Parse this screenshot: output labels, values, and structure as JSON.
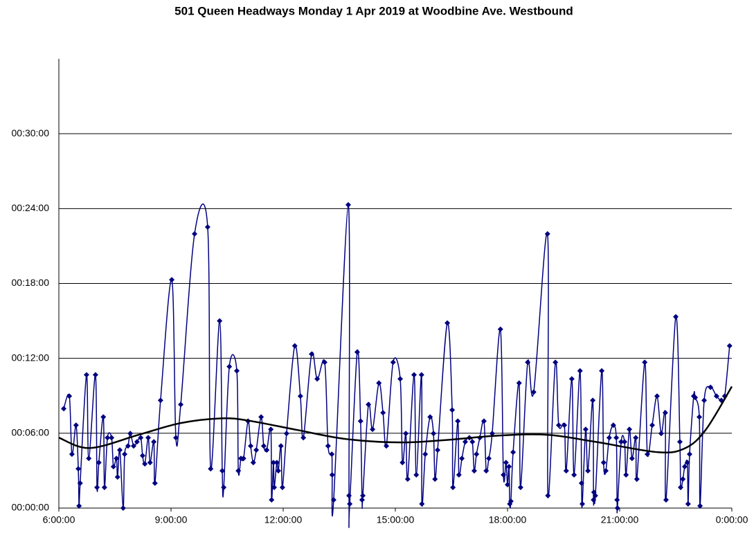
{
  "chart_data": {
    "type": "line",
    "title": "501 Queen Headways Monday 1 Apr 2019 at Woodbine Ave. Westbound",
    "xlim": [
      6,
      24
    ],
    "xticks": [
      {
        "value": 6,
        "label": "6:00:00"
      },
      {
        "value": 9,
        "label": "9:00:00"
      },
      {
        "value": 12,
        "label": "12:00:00"
      },
      {
        "value": 15,
        "label": "15:00:00"
      },
      {
        "value": 18,
        "label": "18:00:00"
      },
      {
        "value": 21,
        "label": "21:00:00"
      },
      {
        "value": 24,
        "label": "0:00:00"
      }
    ],
    "ylim": [
      0,
      36
    ],
    "yticks": [
      {
        "value": 0,
        "label": "00:00:00"
      },
      {
        "value": 6,
        "label": "00:06:00"
      },
      {
        "value": 12,
        "label": "00:12:00"
      },
      {
        "value": 18,
        "label": "00:18:00"
      },
      {
        "value": 24,
        "label": "00:24:00"
      },
      {
        "value": 30,
        "label": "00:30:00"
      }
    ],
    "grid": true,
    "series": [
      {
        "color": "#000080",
        "markers": true,
        "smooth": true,
        "x": [
          6.13,
          6.28,
          6.35,
          6.46,
          6.52,
          6.54,
          6.57,
          6.74,
          6.8,
          6.98,
          7.02,
          7.07,
          7.19,
          7.22,
          7.3,
          7.41,
          7.46,
          7.54,
          7.57,
          7.63,
          7.72,
          7.76,
          7.85,
          7.91,
          8.0,
          8.09,
          8.19,
          8.24,
          8.3,
          8.39,
          8.44,
          8.54,
          8.57,
          8.72,
          9.02,
          9.13,
          9.26,
          9.63,
          9.98,
          10.06,
          10.3,
          10.37,
          10.41,
          10.56,
          10.76,
          10.8,
          10.87,
          10.94,
          11.06,
          11.13,
          11.2,
          11.28,
          11.41,
          11.48,
          11.56,
          11.67,
          11.69,
          11.74,
          11.76,
          11.83,
          11.87,
          11.94,
          11.98,
          12.09,
          12.31,
          12.46,
          12.54,
          12.76,
          12.91,
          13.11,
          13.2,
          13.3,
          13.31,
          13.35,
          13.74,
          13.76,
          13.78,
          13.98,
          14.07,
          14.11,
          14.13,
          14.28,
          14.39,
          14.56,
          14.67,
          14.76,
          14.94,
          15.13,
          15.19,
          15.28,
          15.33,
          15.5,
          15.56,
          15.7,
          15.71,
          15.8,
          15.93,
          16.02,
          16.06,
          16.13,
          16.39,
          16.52,
          16.54,
          16.67,
          16.7,
          16.78,
          16.87,
          16.98,
          17.06,
          17.11,
          17.17,
          17.26,
          17.37,
          17.43,
          17.5,
          17.59,
          17.81,
          17.89,
          17.96,
          18.0,
          18.04,
          18.06,
          18.09,
          18.15,
          18.31,
          18.35,
          18.54,
          18.7,
          19.07,
          19.08,
          19.28,
          19.37,
          19.52,
          19.57,
          19.72,
          19.78,
          19.94,
          19.98,
          20.0,
          20.09,
          20.15,
          20.28,
          20.3,
          20.31,
          20.35,
          20.52,
          20.57,
          20.63,
          20.72,
          20.83,
          20.91,
          20.93,
          20.94,
          21.04,
          21.13,
          21.17,
          21.26,
          21.33,
          21.43,
          21.46,
          21.67,
          21.74,
          21.87,
          22.0,
          22.11,
          22.22,
          22.24,
          22.5,
          22.61,
          22.63,
          22.69,
          22.74,
          22.81,
          22.83,
          22.87,
          22.98,
          23.02,
          23.13,
          23.15,
          23.26,
          23.43,
          23.59,
          23.72,
          23.81,
          23.94
        ],
        "values": [
          7.97,
          8.97,
          4.32,
          6.64,
          3.15,
          0.17,
          2.0,
          10.68,
          3.98,
          10.68,
          1.66,
          3.65,
          7.3,
          1.66,
          5.64,
          5.64,
          3.32,
          3.98,
          2.49,
          4.65,
          0,
          4.32,
          4.98,
          5.98,
          4.98,
          5.31,
          5.64,
          4.2,
          3.54,
          5.64,
          3.65,
          5.31,
          2.0,
          8.63,
          18.3,
          5.64,
          8.3,
          21.97,
          22.52,
          3.15,
          15.0,
          2.99,
          1.66,
          11.34,
          11.0,
          2.99,
          3.98,
          3.98,
          6.97,
          4.98,
          3.65,
          4.65,
          7.3,
          4.98,
          4.65,
          6.31,
          0.66,
          3.65,
          1.66,
          3.65,
          2.99,
          4.98,
          1.66,
          5.98,
          13.0,
          8.97,
          5.64,
          12.34,
          10.35,
          11.68,
          4.98,
          4.32,
          2.66,
          0.66,
          24.3,
          1.0,
          0.33,
          12.5,
          6.97,
          0.66,
          1.0,
          8.3,
          6.31,
          10.02,
          7.64,
          4.98,
          11.68,
          10.35,
          3.65,
          5.98,
          2.32,
          10.68,
          2.66,
          10.68,
          0.33,
          4.32,
          7.3,
          5.98,
          2.32,
          4.65,
          14.83,
          7.86,
          1.66,
          6.97,
          2.66,
          3.98,
          5.31,
          5.64,
          5.31,
          2.99,
          4.32,
          5.64,
          6.97,
          2.99,
          3.98,
          5.98,
          14.33,
          2.66,
          3.65,
          1.88,
          3.32,
          0.33,
          0.55,
          4.48,
          10.02,
          1.66,
          11.68,
          9.3,
          21.97,
          1.0,
          11.68,
          6.64,
          6.64,
          2.99,
          10.35,
          2.66,
          11.0,
          2.0,
          0.33,
          6.31,
          2.99,
          8.63,
          0.66,
          1.27,
          1.0,
          11.0,
          3.65,
          2.99,
          5.64,
          6.64,
          5.64,
          0.66,
          0,
          5.31,
          5.31,
          2.66,
          6.31,
          3.98,
          5.64,
          2.32,
          11.68,
          4.32,
          6.64,
          8.97,
          5.98,
          7.64,
          0.66,
          15.33,
          5.31,
          1.66,
          2.32,
          3.32,
          3.65,
          0.33,
          4.32,
          8.97,
          8.86,
          7.3,
          0.17,
          8.63,
          9.68,
          8.97,
          8.63,
          8.97,
          13.0
        ]
      },
      {
        "color": "#000000",
        "markers": false,
        "smooth": true,
        "x": [
          6,
          6.83,
          8.13,
          9.24,
          10.35,
          11.09,
          12.39,
          13.69,
          15.17,
          16.46,
          17.76,
          19.06,
          20.35,
          22.02,
          22.76,
          23.31,
          24
        ],
        "values": [
          5.64,
          4.81,
          5.87,
          6.8,
          7.19,
          7.0,
          6.25,
          5.53,
          5.26,
          5.48,
          5.81,
          5.87,
          5.31,
          4.48,
          4.81,
          6.31,
          9.74
        ]
      }
    ]
  }
}
